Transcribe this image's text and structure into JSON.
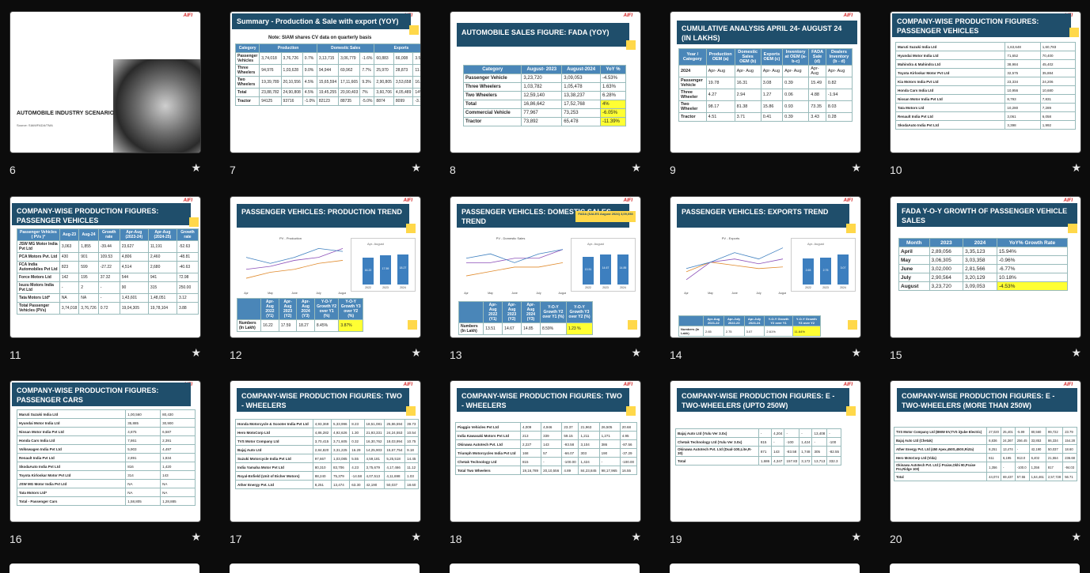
{
  "colors": {
    "background": "#0c0c0c",
    "header": "#1f4e6b",
    "accent": "#ffd84a",
    "brand": "#d32020"
  },
  "brand": "AIFI",
  "star_icon": "★",
  "slides": [
    {
      "num": "6",
      "title": "AUTOMOBILE INDUSTRY SCENARIO",
      "source": "Source: SIAM/FADA/TMA"
    },
    {
      "num": "7",
      "title": "Summary  - Production & Sale with export (YOY)",
      "note": "Note: SIAM shares  CV data on quarterly basis",
      "headers": [
        "Category",
        "Production",
        "Domestic Sales",
        "Exports"
      ],
      "rows": [
        [
          "Passenger Vehicles",
          "3,74,018",
          "3,76,726",
          "0.7%",
          "3,13,715",
          "3,06,779",
          "-1.6%",
          "60,883",
          "66,008",
          "3.5%"
        ],
        [
          "Three Wheelers",
          "94,976",
          "1,03,628",
          "9.0%",
          "94,944",
          "69,962",
          "7.7%",
          "25,970",
          "28,873",
          "11.2%"
        ],
        [
          "Two Wheelers",
          "19,39,789",
          "20,10,556",
          "4.5%",
          "15,65,594",
          "17,11,665",
          "9.3%",
          "2,90,805",
          "3,53,658",
          "16.4%"
        ],
        [
          "Total",
          "23,88,782",
          "24,90,808",
          "4.5%",
          "19,45,255",
          "20,90,403",
          "7%",
          "3,60,706",
          "4,05,489",
          "14%"
        ],
        [
          "Tractor",
          "94125",
          "93716",
          "-1.0%",
          "82123",
          "88735",
          "-5.0%",
          "8874",
          "8099",
          "-3.1%"
        ]
      ]
    },
    {
      "num": "8",
      "title": "AUTOMOBILE SALES FIGURE: FADA (YOY)",
      "headers": [
        "Category",
        "August- 2023",
        "August-2024",
        "YoY %"
      ],
      "rows": [
        [
          "Passenger Vehicle",
          "3,23,720",
          "3,09,053",
          "-4.53%"
        ],
        [
          "Three Wheelers",
          "1,03,782",
          "1,05,478",
          "1.63%"
        ],
        [
          "Two Wheelers",
          "12,59,140",
          "13,38,237",
          "6.28%"
        ],
        [
          "Total",
          "16,86,642",
          "17,52,768",
          "4%"
        ],
        [
          "Commercial Vehicle",
          "77,967",
          "73,253",
          "-6.05%"
        ],
        [
          "Tractor",
          "73,892",
          "65,478",
          "-11.39%"
        ]
      ]
    },
    {
      "num": "9",
      "title": "CUMULATIVE ANALYSIS APRIL 24- AUGUST 24 (IN  LAKHS)",
      "headers": [
        "Year / Category",
        "Production OEM (a)",
        "Domestic Sales OEM (b)",
        "Exports OEM (c)",
        "Inventory at OEM (a-b-c)",
        "FADA Sale (d)",
        "Dealers Inventory (b - d)"
      ],
      "rows": [
        [
          "2024",
          "Apr- Aug",
          "Apr- Aug",
          "Apr- Aug",
          "Apr- Aug",
          "Apr- Aug",
          "Apr- Aug"
        ],
        [
          "Passenger Vehicle",
          "19.78",
          "16.31",
          "3.08",
          "0.39",
          "15.49",
          "0.82"
        ],
        [
          "Three Wheeler",
          "4.27",
          "2.94",
          "1.27",
          "0.06",
          "4.88",
          "-1.94"
        ],
        [
          "Two Wheeler",
          "98.17",
          "81.38",
          "15.86",
          "0.93",
          "73.35",
          "8.03"
        ],
        [
          "Tractor",
          "4.51",
          "3.71",
          "0.41",
          "0.39",
          "3.43",
          "0.28"
        ]
      ]
    },
    {
      "num": "10",
      "title": "COMPANY-WISE PRODUCTION FIGURES: PASSENGER VEHICLES",
      "rows": [
        [
          "Maruti Suzuki India Ltd",
          "1,63,648",
          "1,60,783"
        ],
        [
          "Hyundai Motor India Ltd",
          "71,652",
          "70,400"
        ],
        [
          "Mahindra & Mahindra Ltd",
          "38,984",
          "45,402"
        ],
        [
          "Toyota Kirloskar Motor Pvt Ltd",
          "32,575",
          "35,884"
        ],
        [
          "Kia Motors India Pvt Ltd",
          "23,334",
          "24,206"
        ],
        [
          "Honda Cars India Ltd",
          "10,956",
          "10,680"
        ],
        [
          "Nissan Motor India Pvt Ltd",
          "8,793",
          "7,831"
        ],
        [
          "Tata Motors Ltd",
          "10,280",
          "7,289"
        ],
        [
          "Renault India Pvt Ltd",
          "3,061",
          "6,058"
        ],
        [
          "SkodaAuto India Pvt Ltd",
          "3,398",
          "1,992"
        ]
      ]
    },
    {
      "num": "11",
      "title": "COMPANY-WISE PRODUCTION FIGURES: PASSENGER VEHICLES",
      "headers": [
        "Passenger Vehicles ( PVs )*",
        "Aug-23",
        "Aug-24",
        "Growth rate",
        "Apr-Aug (2023-24)",
        "Apr-Aug (2024-25)",
        "Growth rate"
      ],
      "rows": [
        [
          "JSW MG Motor India Pvt Ltd",
          "3,063",
          "1,855",
          "-39.44",
          "23,627",
          "11,191",
          "-52.63"
        ],
        [
          "PCA Motors Pvt. Ltd",
          "430",
          "901",
          "109.53",
          "4,806",
          "2,460",
          "-48.81"
        ],
        [
          "FCA India Automobiles Pvt Ltd",
          "823",
          "599",
          "-27.22",
          "4,514",
          "2,680",
          "-40.63"
        ],
        [
          "Force Motors Ltd",
          "142",
          "195",
          "37.32",
          "544",
          "941",
          "72.98"
        ],
        [
          "Isuzu Motors India Pvt Ltd",
          "-",
          "2",
          "-",
          "90",
          "315",
          "250.00"
        ],
        [
          "Tata Motors Ltd*",
          "NA",
          "NA",
          "-",
          "1,43,601",
          "1,48,051",
          "3.12"
        ],
        [
          "Total Passenger Vehicles (PVs)",
          "3,74,018",
          "3,76,726",
          "0.72",
          "19,04,305",
          "19,78,104",
          "3.88"
        ]
      ]
    },
    {
      "num": "12",
      "title": "PASSENGER VEHICLES: PRODUCTION TREND",
      "chart_title": "PV - Production",
      "bar_title": "Apr- August",
      "headers": [
        "",
        "Apr- Aug 2022 (Y1)",
        "Apr- Aug 2023 (Y2)",
        "Apr- Aug 2024 (Y3)",
        "Y-O-Y Growth Y2 over Y1 (%)",
        "Y-O-Y Growth Y3 over Y2 (%)"
      ],
      "rows": [
        [
          "Numbers (In Lakh)",
          "16.22",
          "17.59",
          "18.27",
          "8.45%",
          "3.87%"
        ]
      ]
    },
    {
      "num": "13",
      "title": "PASSENGER VEHICLES: DOMESTIC SALES TREND",
      "badge": "FADA (SALES August 2024) 3,09,053",
      "chart_title": "PV - Domestic Sales",
      "bar_title": "Apr- August",
      "headers": [
        "",
        "Apr-Aug 2022 (Y1)",
        "Apr-Aug 2023 (Y2)",
        "Apr-Aug 2024 (Y3)",
        "Y-O-Y Growth Y2 over Y1 (%)",
        "Y-O-Y Growth Y3 over Y2 (%)"
      ],
      "rows": [
        [
          "Numbers (In Lakh)",
          "13.51",
          "14.67",
          "14.85",
          "8.59%",
          "1.23 %"
        ]
      ]
    },
    {
      "num": "14",
      "title": "PASSENGER VEHICLES: EXPORTS TREND",
      "chart_title": "PV - Exports",
      "bar_title": "Apr- August",
      "headers": [
        "",
        "Apr-Aug 2021-22",
        "Apr-July 2022-23",
        "Apr-July 2023-24",
        "Y-O-Y Growth Y2 over Y1",
        "Y-O-Y Growth Y3 over Y2"
      ],
      "rows": [
        [
          "Numbers (In Lakh)",
          "2.65",
          "2.75",
          "3.07",
          "2.61%",
          "11.64%"
        ]
      ]
    },
    {
      "num": "15",
      "title": "FADA Y-O-Y GROWTH OF PASSENGER VEHICLE SALES",
      "headers": [
        "Month",
        "2023",
        "2024",
        "YoY% Growth Rate"
      ],
      "rows": [
        [
          "April",
          "2,89,056",
          "3,35,123",
          "15.94%"
        ],
        [
          "May",
          "3,06,305",
          "3,03,358",
          "-0.96%"
        ],
        [
          "June",
          "3,02,000",
          "2,81,566",
          "-6.77%"
        ],
        [
          "July",
          "2,90,564",
          "3,20,129",
          "10.18%"
        ],
        [
          "August",
          "3,23,720",
          "3,09,053",
          "-4.53%"
        ]
      ]
    },
    {
      "num": "16",
      "title": "COMPANY-WISE PRODUCTION FIGURES: PASSENGER CARS",
      "rows": [
        [
          "Maruti Suzuki India Ltd",
          "1,00,560",
          "80,430"
        ],
        [
          "Hyundai Motor India Ltd",
          "35,885",
          "30,900"
        ],
        [
          "Nissan Motor India Pvt Ltd",
          "4,875",
          "6,587"
        ],
        [
          "Honda Cars India Ltd",
          "7,861",
          "2,391"
        ],
        [
          "Volkswagen India Pvt Ltd",
          "5,903",
          "4,497"
        ],
        [
          "Renault India Pvt Ltd",
          "2,891",
          "1,834"
        ],
        [
          "SkodaAuto India Pvt Ltd",
          "816",
          "1,420"
        ],
        [
          "Toyota Kirloskar Motor Pvt Ltd",
          "314",
          "143"
        ],
        [
          "JSW MG Motor India Pvt Ltd",
          "NA",
          "NA"
        ],
        [
          "Tata Motors Ltd*",
          "NA",
          "NA"
        ],
        [
          "Total - Passenger Cars",
          "1,58,805",
          "1,28,885"
        ]
      ]
    },
    {
      "num": "17",
      "title": "COMPANY-WISE PRODUCTION FIGURES: TWO - WHEELERS",
      "rows": [
        [
          "Honda Motorcycle & Scooter India Pvt Ltd",
          "4,93,369",
          "5,33,996",
          "8.23",
          "18,51,081",
          "25,86,594",
          "39.73"
        ],
        [
          "Hero MotoCorp Ltd",
          "4,86,282",
          "4,92,626",
          "1.30",
          "21,93,331",
          "24,24,553",
          "10.54"
        ],
        [
          "TVS Motor Company Ltd",
          "3,70,415",
          "3,71,605",
          "0.32",
          "16,30,762",
          "18,03,994",
          "10.75"
        ],
        [
          "Bajaj Auto Ltd",
          "2,84,820",
          "3,31,225",
          "16.29",
          "14,25,903",
          "15,67,754",
          "9.18"
        ],
        [
          "Suzuki Motorcycle India Pvt Ltd",
          "97,667",
          "1,03,085",
          "5.55",
          "4,59,181",
          "5,25,518",
          "14.45"
        ],
        [
          "India Yamaha Motor Pvt Ltd",
          "80,310",
          "83,706",
          "4.23",
          "3,75,679",
          "4,17,466",
          "11.12"
        ],
        [
          "Royal-Enfield (Unit of Eicher Motors)",
          "88,240",
          "75,379",
          "-14.58",
          "4,07,513",
          "4,11,698",
          "1.03"
        ],
        [
          "Ather Energy Pvt. Ltd",
          "8,251",
          "13,474",
          "63.30",
          "42,190",
          "50,037",
          "18.60"
        ]
      ]
    },
    {
      "num": "18",
      "title": "COMPANY-WISE PRODUCTION FIGURES: TWO - WHEELERS",
      "rows": [
        [
          "Piaggio Vehicles Pvt Ltd",
          "4,009",
          "4,946",
          "23.37",
          "21,963",
          "26,505",
          "20.68"
        ],
        [
          "India Kawasaki Motors Pvt Ltd",
          "213",
          "339",
          "59.15",
          "1,211",
          "1,271",
          "4.95"
        ],
        [
          "Okinawa Autotech Pvt. Ltd",
          "2,227",
          "143",
          "-93.58",
          "3,104",
          "386",
          "-87.56"
        ],
        [
          "Triumph Motorcycles India Pvt Ltd",
          "168",
          "57",
          "-66.07",
          "303",
          "190",
          "-37.29"
        ],
        [
          "Chetak Technology Ltd",
          "815",
          "-",
          "-100.00",
          "1,424",
          "-",
          "-100.00"
        ],
        [
          "Total Two Wheelers",
          "19,16,789",
          "20,10,556",
          "4.89",
          "84,23,845",
          "98,17,965",
          "16.55"
        ]
      ]
    },
    {
      "num": "19",
      "title": "COMPANY-WISE PRODUCTION FIGURES: E - TWO-WHEELERS (UPTO 250W)",
      "rows": [
        [
          "Bajaj Auto Ltd (Yulu Ver 3.0x)",
          "-",
          "4,204",
          "-",
          "-",
          "13,408",
          "-"
        ],
        [
          "Chetak Technology Ltd (Yulu Ver 3.0x)",
          "815",
          "-",
          "-100",
          "1,424",
          "-",
          "-100"
        ],
        [
          "Okinawa Autotech Pvt. Ltd (Dual-100,Lite,R-30)",
          "871",
          "143",
          "-83.58",
          "1,748",
          "305",
          "-82.55"
        ],
        [
          "Total",
          "1,686",
          "4,347",
          "157.83",
          "3,172",
          "13,713",
          "332.3"
        ]
      ]
    },
    {
      "num": "20",
      "title": "COMPANY-WISE PRODUCTION FIGURES: E - TWO-WHEELERS (MORE THAN 250W)",
      "rows": [
        [
          "TVS Motor Company Ltd (BMW EV,TVS iQube Electric)",
          "27,020",
          "25,401",
          "-5.99",
          "80,560",
          "99,722",
          "23.79"
        ],
        [
          "Bajaj Auto Ltd (Chetak)",
          "6,836",
          "24,367",
          "256.45",
          "33,853",
          "86,334",
          "154.28"
        ],
        [
          "Ather Energy Pvt. Ltd (450 Apex,450S,450X,Rizta)",
          "8,251",
          "13,474",
          "-",
          "42,190",
          "50,037",
          "18.60"
        ],
        [
          "Hero MotoCorp Ltd (Vida)",
          "611",
          "6,195",
          "913.0",
          "6,402",
          "21,554",
          "236.68"
        ],
        [
          "Okinawa Autotech Pvt. Ltd (i Praise,Okhi 90,Praise Pro,Ridge 100)",
          "1,356",
          "-",
          "-100.0",
          "1,356",
          "817",
          "-94.03"
        ],
        [
          "Total",
          "44,074",
          "69,437",
          "57.55",
          "1,64,461",
          "2,57,728",
          "56.71"
        ]
      ]
    }
  ],
  "chart_data": [
    {
      "type": "line",
      "title": "PV - Production",
      "x": [
        "Apr",
        "May",
        "June",
        "July",
        "August"
      ],
      "series": [
        {
          "name": "2022 (Y1)",
          "values": [
            2.9,
            3.1,
            3.2,
            3.4,
            3.5
          ]
        },
        {
          "name": "2023 (Y2)",
          "values": [
            3.2,
            3.3,
            3.5,
            3.6,
            3.9
          ]
        },
        {
          "name": "2024 (Y3)",
          "values": [
            3.6,
            3.4,
            3.6,
            3.9,
            3.8
          ]
        }
      ]
    },
    {
      "type": "bar",
      "title": "Apr- August",
      "categories": [
        "2022",
        "2023",
        "2024"
      ],
      "values": [
        16.22,
        17.59,
        18.27
      ]
    },
    {
      "type": "line",
      "title": "PV - Domestic Sales",
      "x": [
        "Apr",
        "May",
        "June",
        "July",
        "August"
      ],
      "series": [
        {
          "name": "2022 (Y1)",
          "values": [
            2.5,
            2.6,
            2.7,
            2.7,
            2.8
          ]
        },
        {
          "name": "2023 (Y2)",
          "values": [
            2.8,
            2.8,
            2.9,
            2.9,
            3.1
          ]
        },
        {
          "name": "2024 (Y3)",
          "values": [
            2.9,
            3.0,
            2.8,
            3.0,
            3.1
          ]
        }
      ]
    },
    {
      "type": "bar",
      "title": "Apr- August",
      "categories": [
        "2022",
        "2023",
        "2024"
      ],
      "values": [
        13.51,
        14.67,
        14.85
      ]
    },
    {
      "type": "line",
      "title": "PV - Exports",
      "x": [
        "Apr",
        "May",
        "June",
        "July",
        "August"
      ],
      "series": [
        {
          "name": "2022 (Y1)",
          "values": [
            0.5,
            0.56,
            0.54,
            0.52,
            0.53
          ]
        },
        {
          "name": "2023 (Y2)",
          "values": [
            0.45,
            0.56,
            0.58,
            0.55,
            0.58
          ]
        },
        {
          "name": "2024 (Y3)",
          "values": [
            0.52,
            0.56,
            0.62,
            0.58,
            0.65
          ]
        }
      ]
    },
    {
      "type": "bar",
      "title": "Apr- August",
      "categories": [
        "2022",
        "2023",
        "2024"
      ],
      "values": [
        2.65,
        2.75,
        3.07
      ]
    }
  ]
}
